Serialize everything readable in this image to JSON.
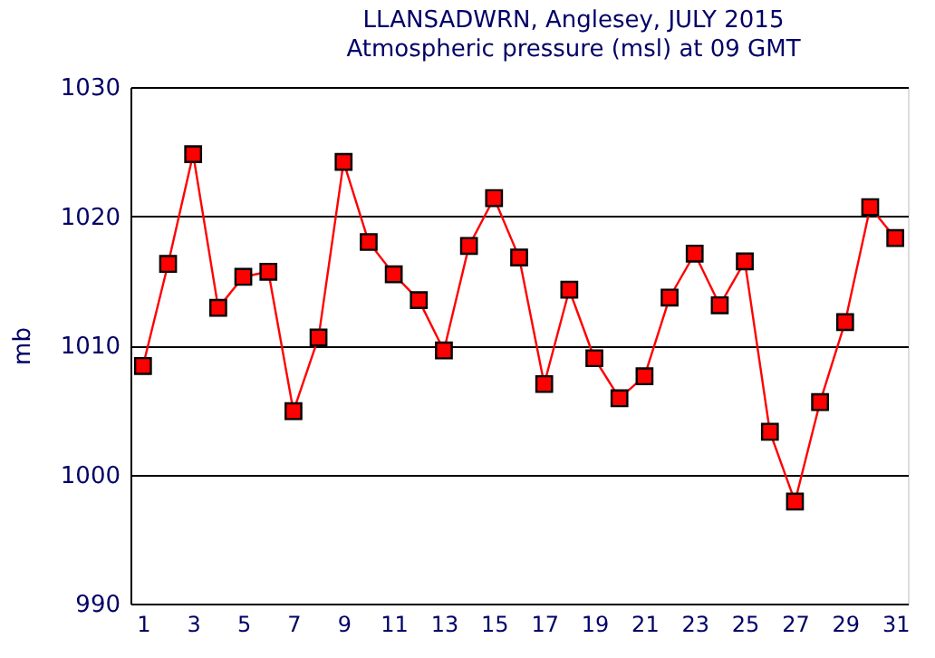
{
  "chart_data": {
    "type": "line",
    "title": "LLANSADWRN, Anglesey,  JULY 2015",
    "subtitle": "Atmospheric pressure  (msl) at 09 GMT",
    "ylabel": "mb",
    "x": [
      1,
      2,
      3,
      4,
      5,
      6,
      7,
      8,
      9,
      10,
      11,
      12,
      13,
      14,
      15,
      16,
      17,
      18,
      19,
      20,
      21,
      22,
      23,
      24,
      25,
      26,
      27,
      28,
      29,
      30,
      31
    ],
    "series": [
      {
        "color": "#ff0000",
        "values": [
          1008.4,
          1016.3,
          1024.8,
          1012.9,
          1015.3,
          1015.7,
          1004.9,
          1010.6,
          1024.2,
          1018.0,
          1015.5,
          1013.5,
          1009.6,
          1017.7,
          1021.4,
          1016.8,
          1007.0,
          1014.3,
          1009.0,
          1005.9,
          1007.6,
          1013.7,
          1017.1,
          1013.1,
          1016.5,
          1003.3,
          997.9,
          1005.6,
          1011.8,
          1020.7,
          1018.3
        ]
      }
    ],
    "xlim": [
      0.5,
      31.5
    ],
    "xticks": [
      1,
      3,
      5,
      7,
      9,
      11,
      13,
      15,
      17,
      19,
      21,
      23,
      25,
      27,
      29,
      31
    ],
    "ylim": [
      990,
      1030
    ],
    "yticks": [
      990,
      1000,
      1010,
      1020,
      1030
    ],
    "grid": "y",
    "marker": "square",
    "line_style": "solid"
  }
}
